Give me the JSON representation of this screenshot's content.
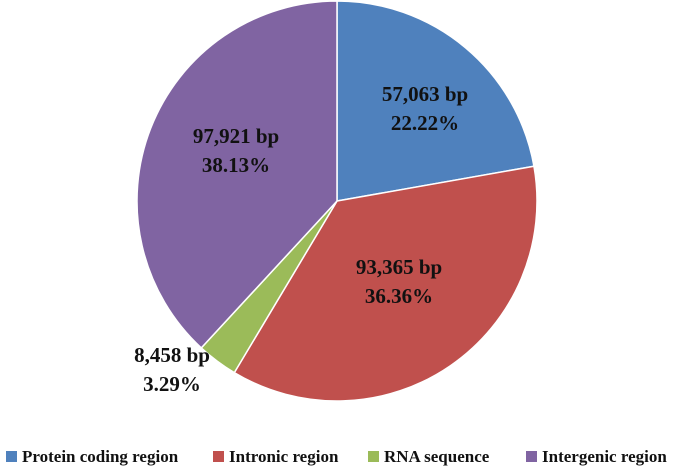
{
  "chart_data": {
    "type": "pie",
    "start_angle_deg": 0,
    "direction": "clockwise",
    "legend_position": "bottom",
    "slices": [
      {
        "name": "Protein coding region",
        "bp_label": "57,063 bp",
        "pct_label": "22.22%",
        "value": 22.22,
        "color": "#4F81BD"
      },
      {
        "name": "Intronic region",
        "bp_label": "93,365 bp",
        "pct_label": "36.36%",
        "value": 36.36,
        "color": "#C0504D"
      },
      {
        "name": "RNA sequence",
        "bp_label": "8,458 bp",
        "pct_label": "3.29%",
        "value": 3.29,
        "color": "#9BBB59"
      },
      {
        "name": "Intergenic region",
        "bp_label": "97,921 bp",
        "pct_label": "38.13%",
        "value": 38.13,
        "color": "#8064A2"
      }
    ]
  }
}
